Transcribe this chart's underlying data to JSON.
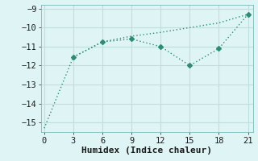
{
  "line1_x": [
    0,
    3,
    6,
    9,
    12,
    15,
    18,
    21
  ],
  "line1_y": [
    -15.3,
    -11.55,
    -10.75,
    -10.45,
    -10.25,
    -10.0,
    -9.75,
    -9.3
  ],
  "line2_x": [
    3,
    6,
    9,
    12,
    15,
    18,
    21
  ],
  "line2_y": [
    -11.55,
    -10.75,
    -10.6,
    -11.0,
    -12.0,
    -11.1,
    -9.3
  ],
  "color": "#2e8b75",
  "background_color": "#dff4f4",
  "grid_color": "#c0dede",
  "xlabel": "Humidex (Indice chaleur)",
  "ylim": [
    -15.5,
    -8.8
  ],
  "xlim": [
    -0.3,
    21.5
  ],
  "xticks": [
    0,
    3,
    6,
    9,
    12,
    15,
    18,
    21
  ],
  "yticks": [
    -15,
    -14,
    -13,
    -12,
    -11,
    -10,
    -9
  ],
  "xlabel_fontsize": 8,
  "tick_fontsize": 7.5
}
